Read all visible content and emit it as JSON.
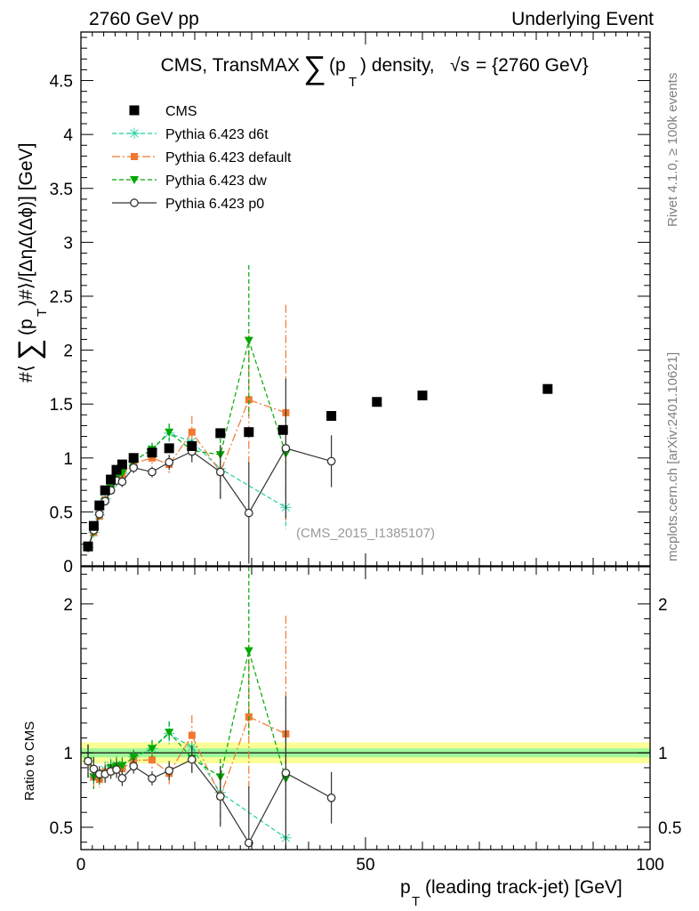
{
  "header": {
    "left": "2760 GeV pp",
    "right": "Underlying Event"
  },
  "side": {
    "rivet": "Rivet 4.1.0, ≥ 100k events",
    "mcplots": "mcplots.cern.ch [arXiv:2401.10621]"
  },
  "chart_data": {
    "type": "line",
    "title_prefix": "CMS, TransMAX",
    "title_pt": "(p",
    "title_pt_sub": "T",
    "title_suffix": ") density,",
    "title_sqrt": "√s",
    "title_energy": "= {2760 GeV}",
    "watermark": "(CMS_2015_I1385107)",
    "xlabel_p": "p",
    "xlabel_sub": "T",
    "xlabel_rest": "(leading track-jet) [GeV]",
    "ylabel_main_prefix": "#⟨",
    "ylabel_main_pt": "(p",
    "ylabel_main_sub": "T",
    "ylabel_main_suffix": ")#⟩/[ΔηΔ(Δϕ)] [GeV]",
    "ylabel_ratio": "Ratio to CMS",
    "xlim": [
      0,
      100
    ],
    "ylim_main": [
      0,
      4.95
    ],
    "ylim_ratio": [
      0.35,
      2.25
    ],
    "x_ticks": [
      "0",
      "50",
      "100"
    ],
    "y_ticks_main": [
      "0",
      "0.5",
      "1",
      "1.5",
      "2",
      "2.5",
      "3",
      "3.5",
      "4",
      "4.5"
    ],
    "y_ticks_ratio": [
      "0.5",
      "1",
      "2"
    ],
    "series": [
      {
        "name": "CMS",
        "color": "#000000",
        "marker": "square",
        "line": "none",
        "points": [
          [
            1.25,
            0.18
          ],
          [
            2.25,
            0.37
          ],
          [
            3.25,
            0.56
          ],
          [
            4.25,
            0.7
          ],
          [
            5.25,
            0.8
          ],
          [
            6.25,
            0.89
          ],
          [
            7.25,
            0.94
          ],
          [
            9.25,
            1.0
          ],
          [
            12.5,
            1.05
          ],
          [
            15.5,
            1.09
          ],
          [
            19.5,
            1.11
          ],
          [
            24.5,
            1.23
          ],
          [
            29.5,
            1.24
          ],
          [
            35.5,
            1.26
          ],
          [
            44.0,
            1.39
          ],
          [
            52.0,
            1.52
          ],
          [
            60.0,
            1.58
          ],
          [
            82.0,
            1.64
          ]
        ],
        "band_stat": 0.03,
        "band_total": 0.07
      },
      {
        "name": "Pythia 6.423 d6t",
        "color": "#1fcfa0",
        "marker": "star",
        "line": "dashed",
        "points": [
          [
            1.25,
            0.17,
            0.02
          ],
          [
            2.25,
            0.31,
            0.03
          ],
          [
            3.25,
            0.47,
            0.03
          ],
          [
            4.25,
            0.62,
            0.04
          ],
          [
            5.25,
            0.73,
            0.04
          ],
          [
            6.25,
            0.82,
            0.05
          ],
          [
            7.25,
            0.86,
            0.05
          ],
          [
            9.25,
            0.97,
            0.05
          ],
          [
            12.5,
            1.08,
            0.06
          ],
          [
            15.5,
            1.23,
            0.08
          ],
          [
            19.5,
            1.15,
            0.1
          ],
          [
            24.5,
            0.9,
            0.12
          ],
          [
            36.0,
            0.54,
            0.2
          ]
        ]
      },
      {
        "name": "Pythia 6.423 default",
        "color": "#f07830",
        "marker": "square",
        "line": "dashdot",
        "points": [
          [
            1.25,
            0.17,
            0.02
          ],
          [
            2.25,
            0.31,
            0.03
          ],
          [
            3.25,
            0.46,
            0.03
          ],
          [
            4.25,
            0.61,
            0.04
          ],
          [
            5.25,
            0.7,
            0.04
          ],
          [
            6.25,
            0.81,
            0.05
          ],
          [
            7.25,
            0.84,
            0.05
          ],
          [
            9.25,
            0.95,
            0.05
          ],
          [
            12.5,
            1.0,
            0.06
          ],
          [
            15.5,
            0.94,
            0.08
          ],
          [
            19.5,
            1.24,
            0.15
          ],
          [
            24.5,
            0.87,
            0.25
          ],
          [
            29.5,
            1.54,
            0.6
          ],
          [
            36.0,
            1.42,
            1.0
          ]
        ]
      },
      {
        "name": "Pythia 6.423 dw",
        "color": "#00a800",
        "marker": "triangle-down",
        "line": "dashed",
        "points": [
          [
            1.25,
            0.17,
            0.02
          ],
          [
            2.25,
            0.31,
            0.03
          ],
          [
            3.25,
            0.47,
            0.03
          ],
          [
            4.25,
            0.6,
            0.04
          ],
          [
            5.25,
            0.72,
            0.04
          ],
          [
            6.25,
            0.81,
            0.05
          ],
          [
            7.25,
            0.86,
            0.05
          ],
          [
            9.25,
            0.97,
            0.05
          ],
          [
            12.5,
            1.08,
            0.06
          ],
          [
            15.5,
            1.24,
            0.08
          ],
          [
            19.5,
            1.07,
            0.1
          ],
          [
            24.5,
            1.03,
            0.15
          ],
          [
            29.5,
            2.09,
            0.7
          ],
          [
            36.0,
            1.04,
            0.4
          ]
        ]
      },
      {
        "name": "Pythia 6.423 p0",
        "color": "#333333",
        "marker": "circle-open",
        "line": "solid",
        "points": [
          [
            1.25,
            0.17,
            0.02
          ],
          [
            2.25,
            0.33,
            0.03
          ],
          [
            3.25,
            0.48,
            0.03
          ],
          [
            4.25,
            0.6,
            0.04
          ],
          [
            5.25,
            0.7,
            0.04
          ],
          [
            6.25,
            0.79,
            0.05
          ],
          [
            7.25,
            0.78,
            0.05
          ],
          [
            9.25,
            0.91,
            0.05
          ],
          [
            12.5,
            0.87,
            0.05
          ],
          [
            15.5,
            0.96,
            0.07
          ],
          [
            19.5,
            1.06,
            0.1
          ],
          [
            24.5,
            0.87,
            0.25
          ],
          [
            29.5,
            0.49,
            0.47
          ],
          [
            36.0,
            1.09,
            0.65
          ],
          [
            44.0,
            0.97,
            0.24
          ]
        ]
      }
    ]
  }
}
